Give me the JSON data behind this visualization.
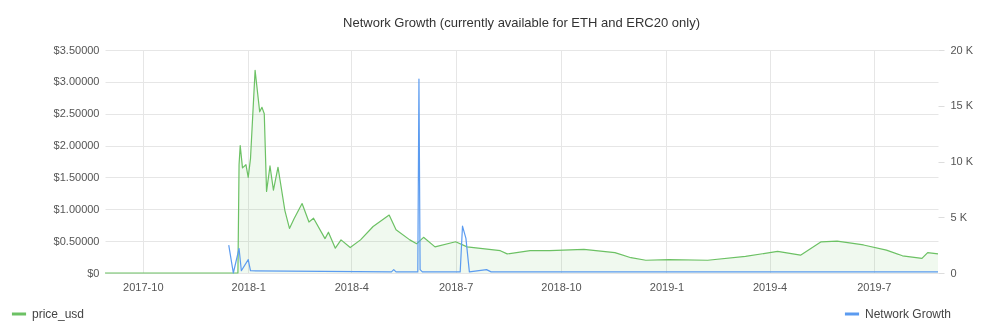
{
  "chart_data": {
    "type": "line",
    "title": "Network Growth (currently available for ETH and ERC20 only)",
    "series": [
      {
        "name": "price_usd",
        "type": "area",
        "color": "#6cc164",
        "x": [
          "2017-08-29",
          "2017-12-23",
          "2017-12-24",
          "2017-12-25",
          "2017-12-27",
          "2017-12-30",
          "2018-01-01",
          "2018-01-03",
          "2018-01-07",
          "2018-01-11",
          "2018-01-13",
          "2018-01-15",
          "2018-01-17",
          "2018-01-20",
          "2018-01-23",
          "2018-01-27",
          "2018-02-02",
          "2018-02-06",
          "2018-02-10",
          "2018-02-17",
          "2018-02-23",
          "2018-02-27",
          "2018-03-09",
          "2018-03-12",
          "2018-03-18",
          "2018-03-23",
          "2018-03-31",
          "2018-04-09",
          "2018-04-20",
          "2018-05-04",
          "2018-05-10",
          "2018-05-22",
          "2018-05-28",
          "2018-06-03",
          "2018-06-13",
          "2018-07-01",
          "2018-07-11",
          "2018-08-09",
          "2018-08-15",
          "2018-09-04",
          "2018-09-21",
          "2018-10-21",
          "2018-11-17",
          "2018-12-01",
          "2018-12-14",
          "2019-01-03",
          "2019-02-06",
          "2019-03-11",
          "2019-04-08",
          "2019-04-28",
          "2019-05-16",
          "2019-05-30",
          "2019-06-22",
          "2019-07-12",
          "2019-07-26",
          "2019-08-12",
          "2019-08-17",
          "2019-08-26"
        ],
        "values": [
          0,
          0,
          1.7,
          2.0,
          1.65,
          1.7,
          1.5,
          1.8,
          3.18,
          2.53,
          2.6,
          2.5,
          1.28,
          1.68,
          1.3,
          1.66,
          0.98,
          0.7,
          0.85,
          1.09,
          0.8,
          0.86,
          0.54,
          0.64,
          0.39,
          0.52,
          0.4,
          0.52,
          0.73,
          0.91,
          0.68,
          0.52,
          0.46,
          0.56,
          0.41,
          0.49,
          0.41,
          0.35,
          0.3,
          0.35,
          0.35,
          0.37,
          0.32,
          0.24,
          0.2,
          0.21,
          0.2,
          0.26,
          0.34,
          0.28,
          0.49,
          0.5,
          0.44,
          0.36,
          0.27,
          0.23,
          0.32,
          0.3
        ]
      },
      {
        "name": "Network Growth",
        "axis": "y2",
        "color": "#5b9bf0",
        "x": [
          "2017-12-15",
          "2017-12-19",
          "2017-12-24",
          "2017-12-26",
          "2018-01-01",
          "2018-01-03",
          "2018-05-06",
          "2018-05-08",
          "2018-05-10",
          "2018-05-29",
          "2018-05-30",
          "2018-05-31",
          "2018-06-02",
          "2018-07-05",
          "2018-07-07",
          "2018-07-10",
          "2018-07-13",
          "2018-07-28",
          "2018-08-01",
          "2019-08-26"
        ],
        "values": [
          2.5,
          0,
          2.2,
          0.2,
          1.2,
          0.2,
          0.1,
          0.3,
          0.1,
          0.1,
          17.4,
          0.3,
          0.1,
          0.1,
          4.2,
          3.1,
          0.1,
          0.3,
          0.1,
          0.1
        ]
      }
    ],
    "ylim": [
      0,
      3.5
    ],
    "yticks": [
      {
        "value": 0,
        "label": "$0"
      },
      {
        "value": 0.5,
        "label": "$0.50000"
      },
      {
        "value": 1,
        "label": "$1.00000"
      },
      {
        "value": 1.5,
        "label": "$1.50000"
      },
      {
        "value": 2,
        "label": "$2.00000"
      },
      {
        "value": 2.5,
        "label": "$2.50000"
      },
      {
        "value": 3,
        "label": "$3.00000"
      },
      {
        "value": 3.5,
        "label": "$3.50000"
      }
    ],
    "y2lim": [
      0,
      20
    ],
    "y2ticks": [
      0,
      {
        "value": 5,
        "label": "5 K"
      },
      {
        "value": 10,
        "label": "10 K"
      },
      {
        "value": 15,
        "label": "15 K"
      },
      {
        "value": 20,
        "label": "20 K"
      }
    ],
    "xlim": [
      "2017-08-29",
      "2019-08-26"
    ],
    "xticks": [
      {
        "value": "2017-10",
        "label": "2017-10"
      },
      {
        "value": "2018-01",
        "label": "2018-1"
      },
      {
        "value": "2018-04",
        "label": "2018-4"
      },
      {
        "value": "2018-07",
        "label": "2018-7"
      },
      {
        "value": "2018-10",
        "label": "2018-10"
      },
      {
        "value": "2019-01",
        "label": "2019-1"
      },
      {
        "value": "2019-04",
        "label": "2019-4"
      },
      {
        "value": "2019-07",
        "label": "2019-7"
      }
    ],
    "grid": true,
    "legend": "bottom"
  }
}
